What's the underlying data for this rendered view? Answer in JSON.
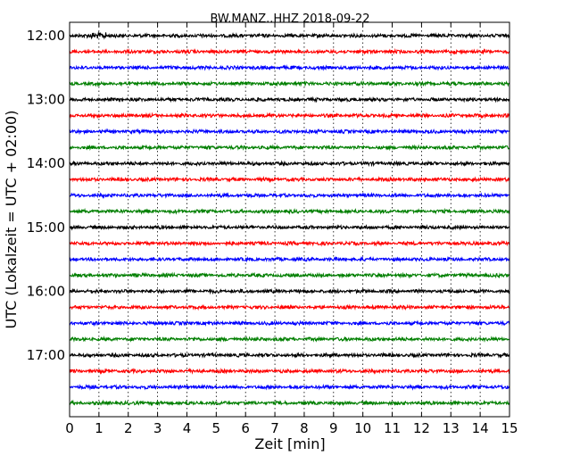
{
  "chart_data": {
    "type": "line",
    "title": "BW.MANZ..HHZ 2018-09-22",
    "xlabel": "Zeit  [min]",
    "ylabel": "UTC (Lokalzeit = UTC + 02:00)",
    "xlim": [
      0,
      15
    ],
    "x_ticks": [
      "0",
      "1",
      "2",
      "3",
      "4",
      "5",
      "6",
      "7",
      "8",
      "9",
      "10",
      "11",
      "12",
      "13",
      "14",
      "15"
    ],
    "y_tick_labels": [
      "12:00",
      "13:00",
      "14:00",
      "15:00",
      "16:00",
      "17:00"
    ],
    "trace_interval_min": 15,
    "trace_start_times": [
      "12:00",
      "12:15",
      "12:30",
      "12:45",
      "13:00",
      "13:15",
      "13:30",
      "13:45",
      "14:00",
      "14:15",
      "14:30",
      "14:45",
      "15:00",
      "15:15",
      "15:30",
      "15:45",
      "16:00",
      "16:15",
      "16:30",
      "16:45",
      "17:00",
      "17:15",
      "17:30",
      "17:45"
    ],
    "trace_colors": [
      "#000000",
      "#ff0000",
      "#0000ff",
      "#007f00"
    ],
    "grid": {
      "x": "dotted",
      "y": "off"
    },
    "legend": "none"
  }
}
